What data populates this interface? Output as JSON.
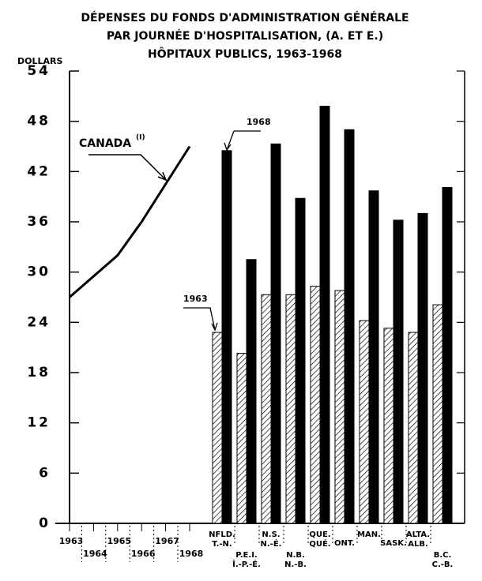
{
  "chart_data": {
    "type": "combo",
    "title": [
      "DÉPENSES DU FONDS D'ADMINISTRATION GÉNÉRALE",
      "PAR JOURNÉE D'HOSPITALISATION, (A. ET E.)",
      "HÔPITAUX PUBLICS, 1963-1968"
    ],
    "y_label": "DOLLARS",
    "ylim": [
      0,
      54
    ],
    "yticks": [
      0,
      6,
      12,
      18,
      24,
      30,
      36,
      42,
      48,
      54
    ],
    "line": {
      "name": "CANADA",
      "note": "(I)",
      "color": "#000000",
      "x": [
        1963,
        1964,
        1965,
        1966,
        1967,
        1968
      ],
      "xlim": [
        1963,
        1968
      ],
      "values": [
        27,
        29.5,
        32,
        36,
        40.5,
        45
      ]
    },
    "categories": [
      [
        "NFLD.",
        "T.-N."
      ],
      [
        "P.E.I.",
        "Î.-P.-É."
      ],
      [
        "N.S.",
        "N.-É."
      ],
      [
        "N.B.",
        "N.-B."
      ],
      [
        "QUE.",
        "QUÉ."
      ],
      [
        "ONT."
      ],
      [
        "MAN."
      ],
      [
        "SASK."
      ],
      [
        "ALTA.",
        "ALB."
      ],
      [
        "B.C.",
        "C.-B."
      ]
    ],
    "series": [
      {
        "name": "1963",
        "color": "hatch",
        "values": [
          22.8,
          20.3,
          27.3,
          27.3,
          28.3,
          27.8,
          24.2,
          23.3,
          22.8,
          26.1
        ]
      },
      {
        "name": "1968",
        "color": "#000000",
        "values": [
          44.5,
          31.5,
          45.3,
          38.8,
          49.8,
          47,
          39.7,
          36.2,
          37,
          40.1
        ]
      }
    ]
  }
}
